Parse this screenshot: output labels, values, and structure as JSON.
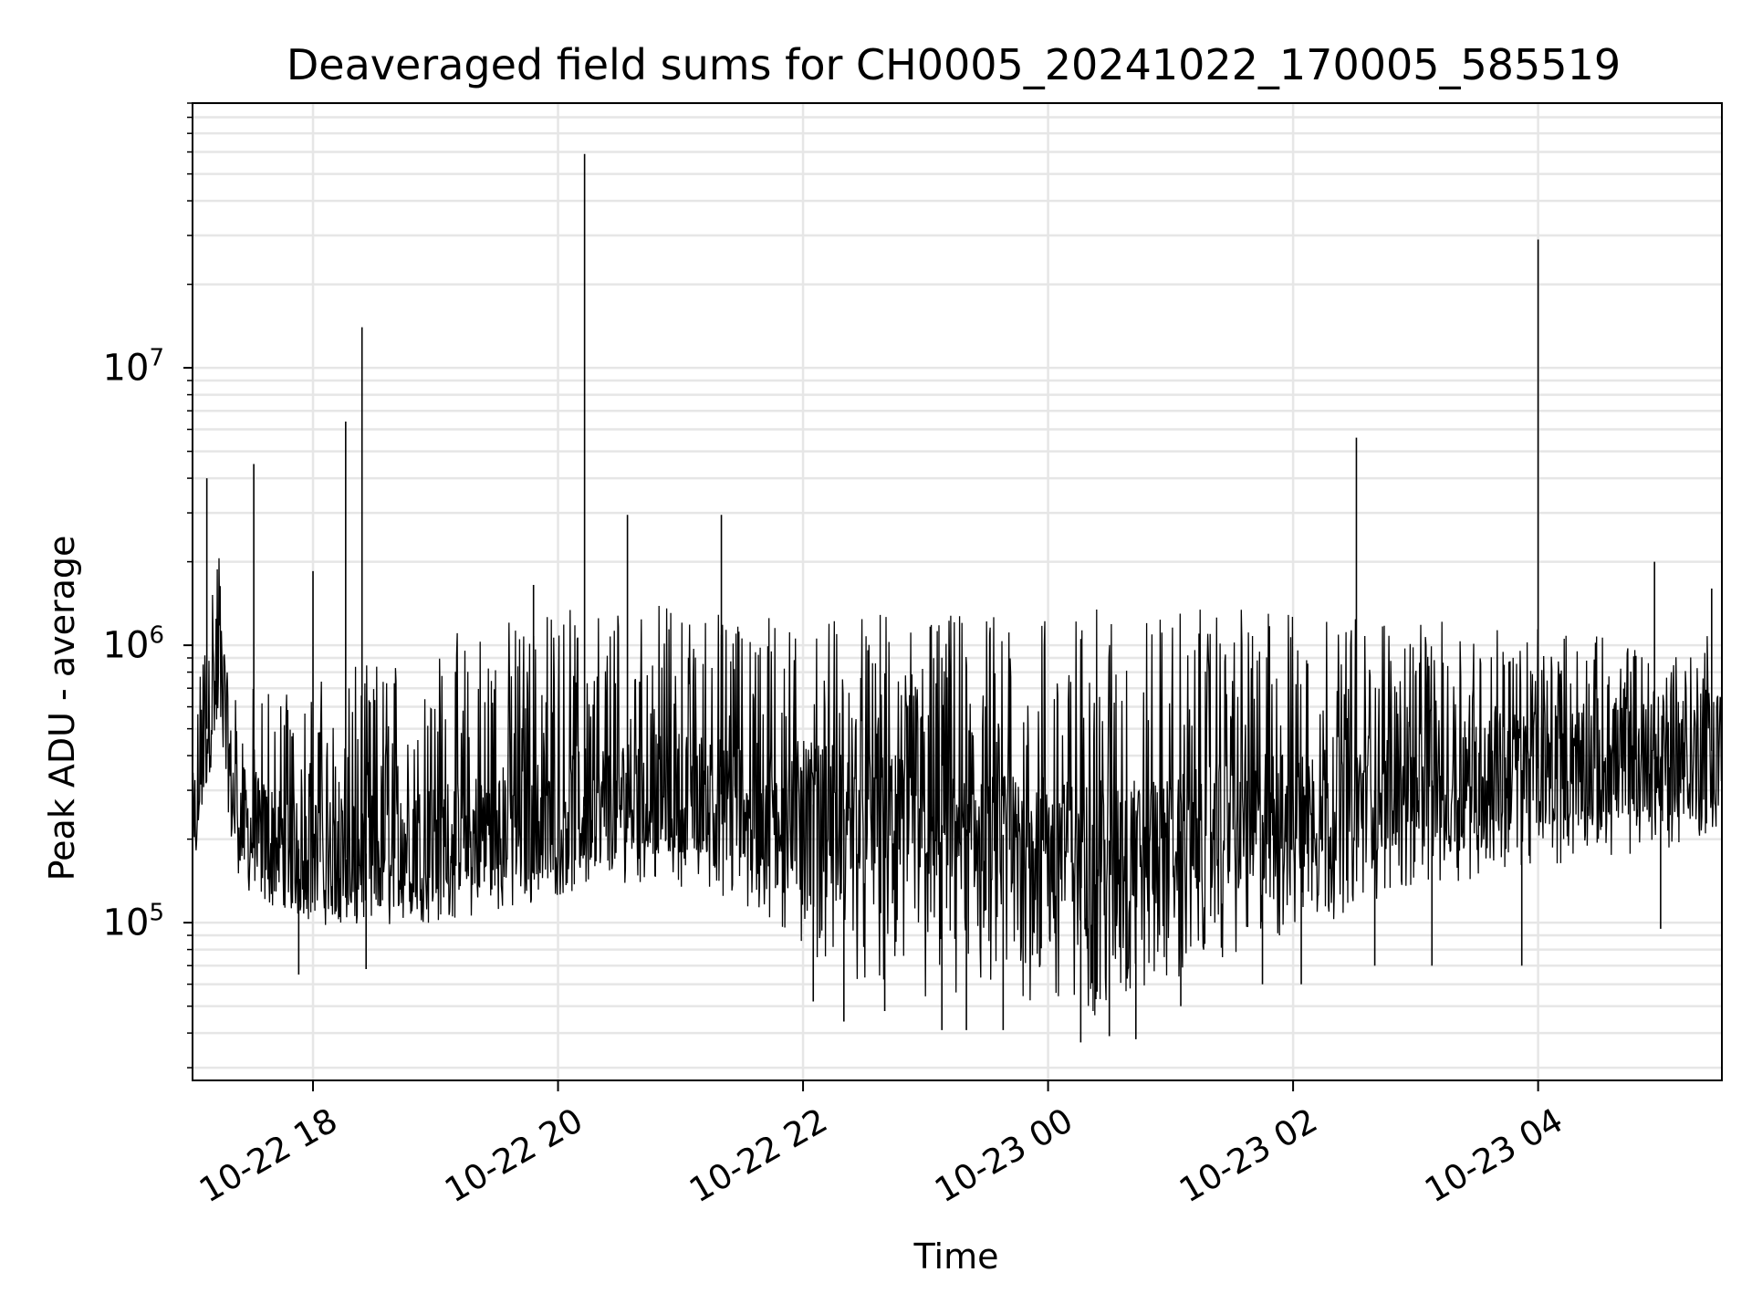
{
  "chart_data": {
    "type": "line",
    "title": "Deaveraged field sums for CH0005_20241022_170005_585519",
    "xlabel": "Time",
    "ylabel": "Peak ADU - average",
    "y_scale": "log",
    "xlim": [
      "2024-10-22 17:01",
      "2024-10-23 05:30"
    ],
    "ylim": [
      27000,
      90000000
    ],
    "x_ticks": [
      {
        "value": "2024-10-22 18:00",
        "label": "10-22 18"
      },
      {
        "value": "2024-10-22 20:00",
        "label": "10-22 20"
      },
      {
        "value": "2024-10-22 22:00",
        "label": "10-22 22"
      },
      {
        "value": "2024-10-23 00:00",
        "label": "10-23 00"
      },
      {
        "value": "2024-10-23 02:00",
        "label": "10-23 02"
      },
      {
        "value": "2024-10-23 04:00",
        "label": "10-23 04"
      }
    ],
    "y_ticks": [
      {
        "value": 100000,
        "base": "10",
        "exp": "5"
      },
      {
        "value": 1000000,
        "base": "10",
        "exp": "6"
      },
      {
        "value": 10000000,
        "base": "10",
        "exp": "7"
      }
    ],
    "grid": true,
    "line_color": "#000000",
    "series": [
      {
        "x": [
          "2024-10-22 17:01",
          "2024-10-22 17:08",
          "2024-10-22 17:14",
          "2024-10-22 17:17",
          "2024-10-22 17:20",
          "2024-10-22 17:26",
          "2024-10-22 17:33",
          "2024-10-22 17:45",
          "2024-10-22 18:00",
          "2024-10-22 18:15",
          "2024-10-22 18:30",
          "2024-10-22 18:45",
          "2024-10-22 19:00",
          "2024-10-22 19:20",
          "2024-10-22 19:40",
          "2024-10-22 20:00",
          "2024-10-22 20:20",
          "2024-10-22 20:40",
          "2024-10-22 21:00",
          "2024-10-22 21:20",
          "2024-10-22 21:40",
          "2024-10-22 22:00",
          "2024-10-22 22:30",
          "2024-10-22 23:00",
          "2024-10-22 23:30",
          "2024-10-23 00:00",
          "2024-10-23 00:20",
          "2024-10-23 00:40",
          "2024-10-23 01:00",
          "2024-10-23 01:30",
          "2024-10-23 02:00",
          "2024-10-23 02:30",
          "2024-10-23 03:00",
          "2024-10-23 03:30",
          "2024-10-23 04:00",
          "2024-10-23 04:30",
          "2024-10-23 05:00",
          "2024-10-23 05:15",
          "2024-10-23 05:30"
        ],
        "base": [
          200000,
          500000,
          900000,
          600000,
          300000,
          220000,
          200000,
          190000,
          180000,
          170000,
          180000,
          190000,
          200000,
          215000,
          230000,
          250000,
          270000,
          290000,
          300000,
          290000,
          280000,
          270000,
          250000,
          230000,
          210000,
          200000,
          195000,
          200000,
          210000,
          230000,
          260000,
          290000,
          320000,
          340000,
          360000,
          370000,
          390000,
          410000,
          420000
        ],
        "low": [
          170000,
          300000,
          500000,
          350000,
          200000,
          150000,
          120000,
          110000,
          100000,
          95000,
          92000,
          95000,
          100000,
          105000,
          110000,
          125000,
          135000,
          140000,
          135000,
          120000,
          100000,
          80000,
          60000,
          50000,
          50000,
          50000,
          45000,
          50000,
          60000,
          75000,
          90000,
          110000,
          130000,
          145000,
          160000,
          170000,
          180000,
          190000,
          200000
        ],
        "high": [
          300000,
          2000000,
          2500000,
          1200000,
          800000,
          700000,
          750000,
          800000,
          750000,
          800000,
          900000,
          1000000,
          1100000,
          1200000,
          1300000,
          1350000,
          1400000,
          1400000,
          1400000,
          1350000,
          1300000,
          1300000,
          1300000,
          1300000,
          1350000,
          1350000,
          1350000,
          1350000,
          1350000,
          1350000,
          1350000,
          1300000,
          1250000,
          1200000,
          1150000,
          1100000,
          1050000,
          1100000,
          1200000
        ]
      }
    ],
    "spikes": [
      {
        "x": "2024-10-22 17:08",
        "y": 4000000
      },
      {
        "x": "2024-10-22 17:31",
        "y": 4500000
      },
      {
        "x": "2024-10-22 18:00",
        "y": 1850000
      },
      {
        "x": "2024-10-22 18:16",
        "y": 6400000
      },
      {
        "x": "2024-10-22 18:24",
        "y": 14000000
      },
      {
        "x": "2024-10-22 19:48",
        "y": 1650000
      },
      {
        "x": "2024-10-22 20:13",
        "y": 59000000
      },
      {
        "x": "2024-10-22 20:34",
        "y": 2950000
      },
      {
        "x": "2024-10-22 21:20",
        "y": 2950000
      },
      {
        "x": "2024-10-23 02:31",
        "y": 5600000
      },
      {
        "x": "2024-10-23 04:00",
        "y": 29000000
      },
      {
        "x": "2024-10-23 04:57",
        "y": 2000000
      },
      {
        "x": "2024-10-23 05:25",
        "y": 1600000
      }
    ],
    "dips": [
      {
        "x": "2024-10-22 17:53",
        "y": 65000
      },
      {
        "x": "2024-10-22 18:26",
        "y": 68000
      },
      {
        "x": "2024-10-22 22:05",
        "y": 52000
      },
      {
        "x": "2024-10-22 22:20",
        "y": 44000
      },
      {
        "x": "2024-10-22 22:40",
        "y": 48000
      },
      {
        "x": "2024-10-22 23:08",
        "y": 41000
      },
      {
        "x": "2024-10-22 23:20",
        "y": 41000
      },
      {
        "x": "2024-10-22 23:38",
        "y": 41000
      },
      {
        "x": "2024-10-23 00:16",
        "y": 37000
      },
      {
        "x": "2024-10-23 00:30",
        "y": 39000
      },
      {
        "x": "2024-10-23 00:43",
        "y": 38000
      },
      {
        "x": "2024-10-23 01:05",
        "y": 50000
      },
      {
        "x": "2024-10-23 01:45",
        "y": 60000
      },
      {
        "x": "2024-10-23 02:04",
        "y": 60000
      },
      {
        "x": "2024-10-23 02:40",
        "y": 70000
      },
      {
        "x": "2024-10-23 03:08",
        "y": 70000
      },
      {
        "x": "2024-10-23 03:52",
        "y": 70000
      },
      {
        "x": "2024-10-23 05:00",
        "y": 95000
      }
    ]
  }
}
